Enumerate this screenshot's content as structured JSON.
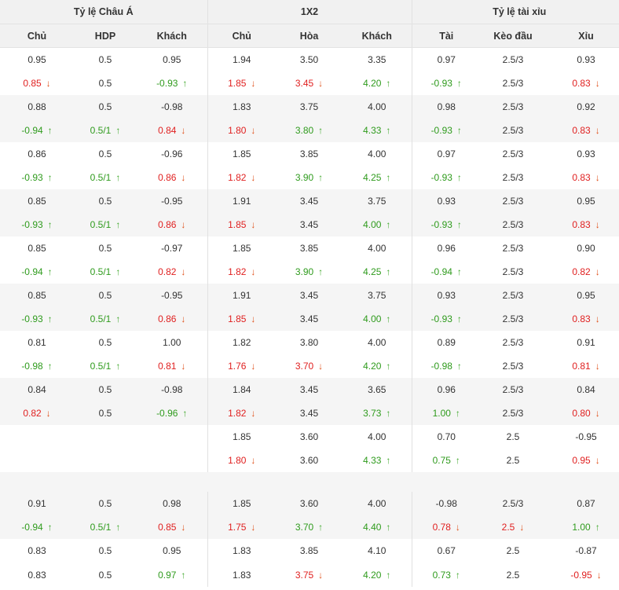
{
  "header": {
    "groups": [
      "Tỷ lệ Châu Á",
      "1X2",
      "Tỷ lệ tài xỉu"
    ],
    "columns": [
      "Chủ",
      "HDP",
      "Khách",
      "Chủ",
      "Hòa",
      "Khách",
      "Tài",
      "Kèo đầu",
      "Xỉu"
    ]
  },
  "colors": {
    "down": "#e02020",
    "up": "#2f9b1d",
    "header_bg": "#f1f1f1",
    "stripe": "#f5f5f5"
  },
  "groups": [
    {
      "rows": [
        [
          {
            "v": "0.95"
          },
          {
            "v": "0.5"
          },
          {
            "v": "0.95"
          },
          {
            "v": "1.94"
          },
          {
            "v": "3.50"
          },
          {
            "v": "3.35"
          },
          {
            "v": "0.97"
          },
          {
            "v": "2.5/3"
          },
          {
            "v": "0.93"
          }
        ],
        [
          {
            "v": "0.85",
            "d": "down"
          },
          {
            "v": "0.5"
          },
          {
            "v": "-0.93",
            "d": "up"
          },
          {
            "v": "1.85",
            "d": "down"
          },
          {
            "v": "3.45",
            "d": "down"
          },
          {
            "v": "4.20",
            "d": "up"
          },
          {
            "v": "-0.93",
            "d": "up"
          },
          {
            "v": "2.5/3"
          },
          {
            "v": "0.83",
            "d": "down"
          }
        ]
      ]
    },
    {
      "rows": [
        [
          {
            "v": "0.88"
          },
          {
            "v": "0.5"
          },
          {
            "v": "-0.98"
          },
          {
            "v": "1.83"
          },
          {
            "v": "3.75"
          },
          {
            "v": "4.00"
          },
          {
            "v": "0.98"
          },
          {
            "v": "2.5/3"
          },
          {
            "v": "0.92"
          }
        ],
        [
          {
            "v": "-0.94",
            "d": "up"
          },
          {
            "v": "0.5/1",
            "d": "up"
          },
          {
            "v": "0.84",
            "d": "down"
          },
          {
            "v": "1.80",
            "d": "down"
          },
          {
            "v": "3.80",
            "d": "up"
          },
          {
            "v": "4.33",
            "d": "up"
          },
          {
            "v": "-0.93",
            "d": "up"
          },
          {
            "v": "2.5/3"
          },
          {
            "v": "0.83",
            "d": "down"
          }
        ]
      ]
    },
    {
      "rows": [
        [
          {
            "v": "0.86"
          },
          {
            "v": "0.5"
          },
          {
            "v": "-0.96"
          },
          {
            "v": "1.85"
          },
          {
            "v": "3.85"
          },
          {
            "v": "4.00"
          },
          {
            "v": "0.97"
          },
          {
            "v": "2.5/3"
          },
          {
            "v": "0.93"
          }
        ],
        [
          {
            "v": "-0.93",
            "d": "up"
          },
          {
            "v": "0.5/1",
            "d": "up"
          },
          {
            "v": "0.86",
            "d": "down"
          },
          {
            "v": "1.82",
            "d": "down"
          },
          {
            "v": "3.90",
            "d": "up"
          },
          {
            "v": "4.25",
            "d": "up"
          },
          {
            "v": "-0.93",
            "d": "up"
          },
          {
            "v": "2.5/3"
          },
          {
            "v": "0.83",
            "d": "down"
          }
        ]
      ]
    },
    {
      "rows": [
        [
          {
            "v": "0.85"
          },
          {
            "v": "0.5"
          },
          {
            "v": "-0.95"
          },
          {
            "v": "1.91"
          },
          {
            "v": "3.45"
          },
          {
            "v": "3.75"
          },
          {
            "v": "0.93"
          },
          {
            "v": "2.5/3"
          },
          {
            "v": "0.95"
          }
        ],
        [
          {
            "v": "-0.93",
            "d": "up"
          },
          {
            "v": "0.5/1",
            "d": "up"
          },
          {
            "v": "0.86",
            "d": "down"
          },
          {
            "v": "1.85",
            "d": "down"
          },
          {
            "v": "3.45"
          },
          {
            "v": "4.00",
            "d": "up"
          },
          {
            "v": "-0.93",
            "d": "up"
          },
          {
            "v": "2.5/3"
          },
          {
            "v": "0.83",
            "d": "down"
          }
        ]
      ]
    },
    {
      "rows": [
        [
          {
            "v": "0.85"
          },
          {
            "v": "0.5"
          },
          {
            "v": "-0.97"
          },
          {
            "v": "1.85"
          },
          {
            "v": "3.85"
          },
          {
            "v": "4.00"
          },
          {
            "v": "0.96"
          },
          {
            "v": "2.5/3"
          },
          {
            "v": "0.90"
          }
        ],
        [
          {
            "v": "-0.94",
            "d": "up"
          },
          {
            "v": "0.5/1",
            "d": "up"
          },
          {
            "v": "0.82",
            "d": "down"
          },
          {
            "v": "1.82",
            "d": "down"
          },
          {
            "v": "3.90",
            "d": "up"
          },
          {
            "v": "4.25",
            "d": "up"
          },
          {
            "v": "-0.94",
            "d": "up"
          },
          {
            "v": "2.5/3"
          },
          {
            "v": "0.82",
            "d": "down"
          }
        ]
      ]
    },
    {
      "rows": [
        [
          {
            "v": "0.85"
          },
          {
            "v": "0.5"
          },
          {
            "v": "-0.95"
          },
          {
            "v": "1.91"
          },
          {
            "v": "3.45"
          },
          {
            "v": "3.75"
          },
          {
            "v": "0.93"
          },
          {
            "v": "2.5/3"
          },
          {
            "v": "0.95"
          }
        ],
        [
          {
            "v": "-0.93",
            "d": "up"
          },
          {
            "v": "0.5/1",
            "d": "up"
          },
          {
            "v": "0.86",
            "d": "down"
          },
          {
            "v": "1.85",
            "d": "down"
          },
          {
            "v": "3.45"
          },
          {
            "v": "4.00",
            "d": "up"
          },
          {
            "v": "-0.93",
            "d": "up"
          },
          {
            "v": "2.5/3"
          },
          {
            "v": "0.83",
            "d": "down"
          }
        ]
      ]
    },
    {
      "rows": [
        [
          {
            "v": "0.81"
          },
          {
            "v": "0.5"
          },
          {
            "v": "1.00"
          },
          {
            "v": "1.82"
          },
          {
            "v": "3.80"
          },
          {
            "v": "4.00"
          },
          {
            "v": "0.89"
          },
          {
            "v": "2.5/3"
          },
          {
            "v": "0.91"
          }
        ],
        [
          {
            "v": "-0.98",
            "d": "up"
          },
          {
            "v": "0.5/1",
            "d": "up"
          },
          {
            "v": "0.81",
            "d": "down"
          },
          {
            "v": "1.76",
            "d": "down"
          },
          {
            "v": "3.70",
            "d": "down"
          },
          {
            "v": "4.20",
            "d": "up"
          },
          {
            "v": "-0.98",
            "d": "up"
          },
          {
            "v": "2.5/3"
          },
          {
            "v": "0.81",
            "d": "down"
          }
        ]
      ]
    },
    {
      "rows": [
        [
          {
            "v": "0.84"
          },
          {
            "v": "0.5"
          },
          {
            "v": "-0.98"
          },
          {
            "v": "1.84"
          },
          {
            "v": "3.45"
          },
          {
            "v": "3.65"
          },
          {
            "v": "0.96"
          },
          {
            "v": "2.5/3"
          },
          {
            "v": "0.84"
          }
        ],
        [
          {
            "v": "0.82",
            "d": "down"
          },
          {
            "v": "0.5"
          },
          {
            "v": "-0.96",
            "d": "up"
          },
          {
            "v": "1.82",
            "d": "down"
          },
          {
            "v": "3.45"
          },
          {
            "v": "3.73",
            "d": "up"
          },
          {
            "v": "1.00",
            "d": "up"
          },
          {
            "v": "2.5/3"
          },
          {
            "v": "0.80",
            "d": "down"
          }
        ]
      ]
    },
    {
      "rows": [
        [
          {
            "v": ""
          },
          {
            "v": ""
          },
          {
            "v": ""
          },
          {
            "v": "1.85"
          },
          {
            "v": "3.60"
          },
          {
            "v": "4.00"
          },
          {
            "v": "0.70"
          },
          {
            "v": "2.5"
          },
          {
            "v": "-0.95"
          }
        ],
        [
          {
            "v": ""
          },
          {
            "v": ""
          },
          {
            "v": ""
          },
          {
            "v": "1.80",
            "d": "down"
          },
          {
            "v": "3.60"
          },
          {
            "v": "4.33",
            "d": "up"
          },
          {
            "v": "0.75",
            "d": "up"
          },
          {
            "v": "2.5"
          },
          {
            "v": "0.95",
            "d": "down"
          }
        ]
      ]
    },
    {
      "gap": true,
      "rows": []
    },
    {
      "rows": [
        [
          {
            "v": "0.91"
          },
          {
            "v": "0.5"
          },
          {
            "v": "0.98"
          },
          {
            "v": "1.85"
          },
          {
            "v": "3.60"
          },
          {
            "v": "4.00"
          },
          {
            "v": "-0.98"
          },
          {
            "v": "2.5/3"
          },
          {
            "v": "0.87"
          }
        ],
        [
          {
            "v": "-0.94",
            "d": "up"
          },
          {
            "v": "0.5/1",
            "d": "up"
          },
          {
            "v": "0.85",
            "d": "down"
          },
          {
            "v": "1.75",
            "d": "down"
          },
          {
            "v": "3.70",
            "d": "up"
          },
          {
            "v": "4.40",
            "d": "up"
          },
          {
            "v": "0.78",
            "d": "down"
          },
          {
            "v": "2.5",
            "d": "down"
          },
          {
            "v": "1.00",
            "d": "up"
          }
        ]
      ]
    },
    {
      "rows": [
        [
          {
            "v": "0.83"
          },
          {
            "v": "0.5"
          },
          {
            "v": "0.95"
          },
          {
            "v": "1.83"
          },
          {
            "v": "3.85"
          },
          {
            "v": "4.10"
          },
          {
            "v": "0.67"
          },
          {
            "v": "2.5"
          },
          {
            "v": "-0.87"
          }
        ],
        [
          {
            "v": "0.83"
          },
          {
            "v": "0.5"
          },
          {
            "v": "0.97",
            "d": "up"
          },
          {
            "v": "1.83"
          },
          {
            "v": "3.75",
            "d": "down"
          },
          {
            "v": "4.20",
            "d": "up"
          },
          {
            "v": "0.73",
            "d": "up"
          },
          {
            "v": "2.5"
          },
          {
            "v": "-0.95",
            "d": "down"
          }
        ]
      ]
    }
  ]
}
